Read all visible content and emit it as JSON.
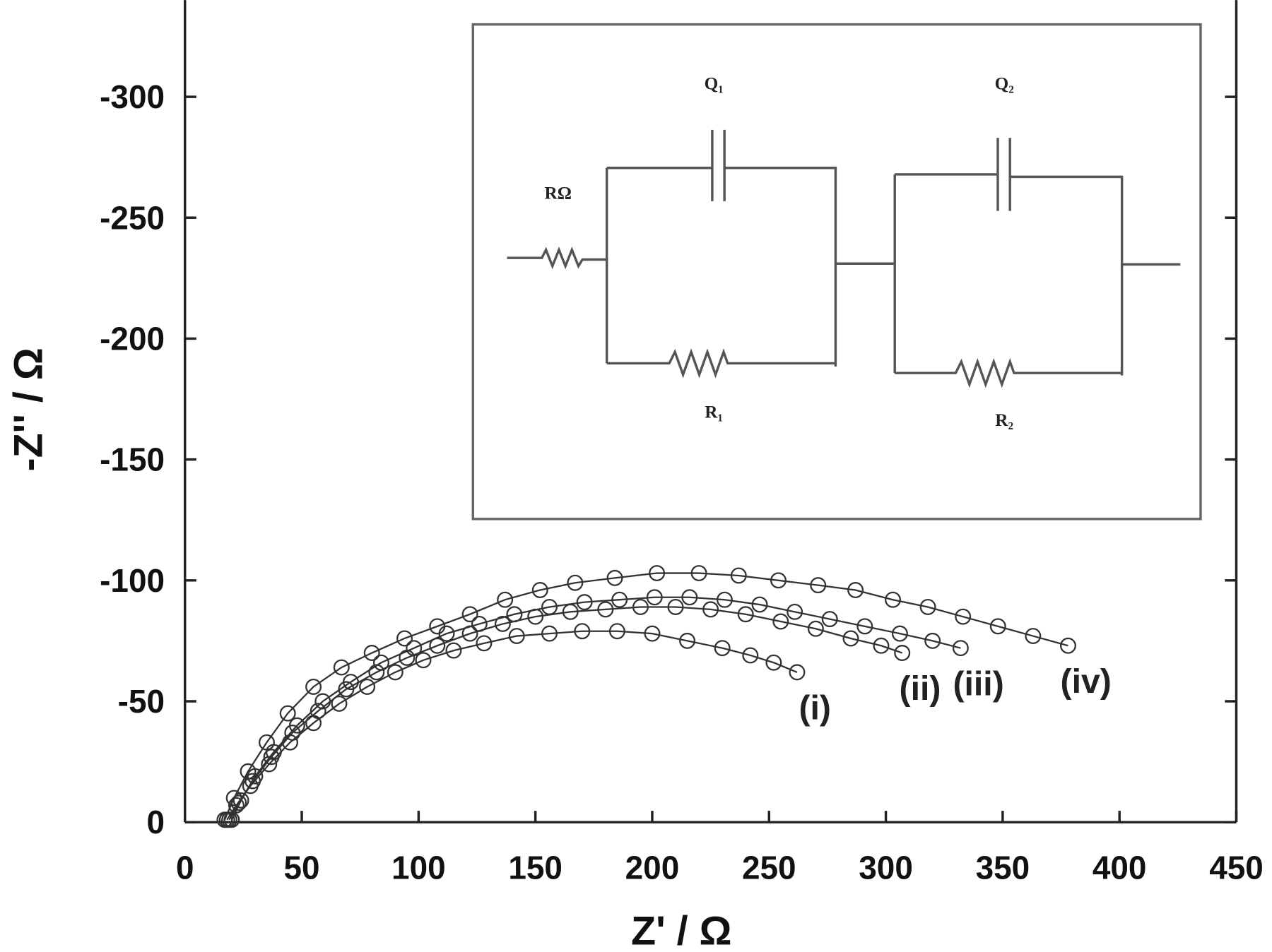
{
  "chart_data": {
    "type": "scatter",
    "x_label": "Z' / Ω",
    "y_label": "-Z'' / Ω",
    "xlim": [
      0,
      450
    ],
    "ylim": [
      0,
      -340
    ],
    "xticks": [
      0,
      50,
      100,
      150,
      200,
      250,
      300,
      350,
      400,
      450
    ],
    "yticks": [
      0,
      -50,
      -100,
      -150,
      -200,
      -250,
      -300
    ],
    "marker": "circle",
    "fit_line": true,
    "series": [
      {
        "name": "(i)",
        "color": "#333333",
        "x": [
          18,
          22,
          28,
          36,
          45,
          55,
          66,
          78,
          90,
          102,
          115,
          128,
          142,
          156,
          170,
          185,
          200,
          215,
          230,
          242,
          252,
          262
        ],
        "values": [
          -1,
          -7,
          -15,
          -24,
          -33,
          -41,
          -49,
          -56,
          -62,
          -67,
          -71,
          -74,
          -77,
          -78,
          -79,
          -79,
          -78,
          -75,
          -72,
          -69,
          -66,
          -62
        ]
      },
      {
        "name": "(ii)",
        "color": "#333333",
        "x": [
          19,
          23,
          29,
          37,
          46,
          57,
          69,
          82,
          95,
          108,
          122,
          136,
          150,
          165,
          180,
          195,
          210,
          225,
          240,
          255,
          270,
          285,
          298,
          307
        ],
        "values": [
          -1,
          -8,
          -17,
          -27,
          -37,
          -46,
          -55,
          -62,
          -68,
          -73,
          -78,
          -82,
          -85,
          -87,
          -88,
          -89,
          -89,
          -88,
          -86,
          -83,
          -80,
          -76,
          -73,
          -70
        ]
      },
      {
        "name": "(iii)",
        "color": "#333333",
        "x": [
          20,
          24,
          30,
          38,
          48,
          59,
          71,
          84,
          98,
          112,
          126,
          141,
          156,
          171,
          186,
          201,
          216,
          231,
          246,
          261,
          276,
          291,
          306,
          320,
          332
        ],
        "values": [
          -1,
          -9,
          -19,
          -29,
          -40,
          -50,
          -58,
          -66,
          -72,
          -78,
          -82,
          -86,
          -89,
          -91,
          -92,
          -93,
          -93,
          -92,
          -90,
          -87,
          -84,
          -81,
          -78,
          -75,
          -72
        ]
      },
      {
        "name": "(iv)",
        "color": "#333333",
        "x": [
          17,
          21,
          27,
          35,
          44,
          55,
          67,
          80,
          94,
          108,
          122,
          137,
          152,
          167,
          184,
          202,
          220,
          237,
          254,
          271,
          287,
          303,
          318,
          333,
          348,
          363,
          378
        ],
        "values": [
          -1,
          -10,
          -21,
          -33,
          -45,
          -56,
          -64,
          -70,
          -76,
          -81,
          -86,
          -92,
          -96,
          -99,
          -101,
          -103,
          -103,
          -102,
          -100,
          -98,
          -96,
          -92,
          -89,
          -85,
          -81,
          -77,
          -73
        ]
      }
    ],
    "inset": {
      "labels": [
        "Q₁",
        "Q₂",
        "RΩ",
        "R₁",
        "R₂"
      ]
    }
  }
}
